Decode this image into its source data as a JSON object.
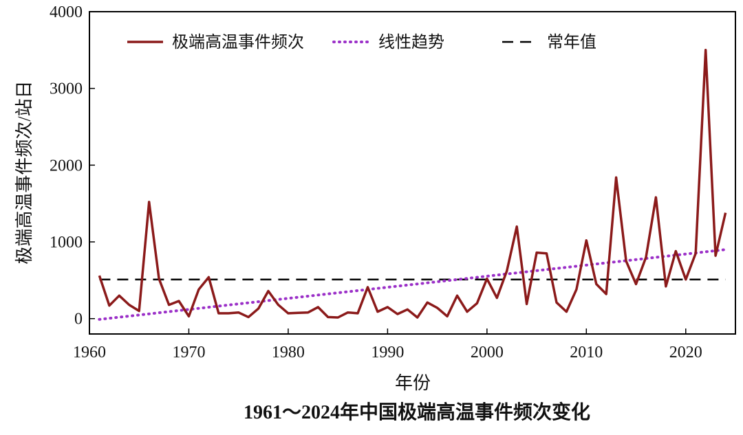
{
  "chart_data": {
    "type": "line",
    "title": "1961～2024年中国极端高温事件频次变化",
    "xlabel": "年份",
    "ylabel": "极端高温事件频次/站日",
    "xlim": [
      1960,
      2025
    ],
    "ylim": [
      -200,
      4000
    ],
    "xticks": [
      1960,
      1970,
      1980,
      1990,
      2000,
      2010,
      2020
    ],
    "yticks": [
      0,
      1000,
      2000,
      3000,
      4000
    ],
    "grid": false,
    "legend_position": "top",
    "colors": {
      "series": "#8b1a1a",
      "trend": "#9b30c8",
      "normal": "#000000"
    },
    "series": [
      {
        "name": "极端高温事件频次",
        "style": "solid",
        "x": [
          1961,
          1962,
          1963,
          1964,
          1965,
          1966,
          1967,
          1968,
          1969,
          1970,
          1971,
          1972,
          1973,
          1974,
          1975,
          1976,
          1977,
          1978,
          1979,
          1980,
          1981,
          1982,
          1983,
          1984,
          1985,
          1986,
          1987,
          1988,
          1989,
          1990,
          1991,
          1992,
          1993,
          1994,
          1995,
          1996,
          1997,
          1998,
          1999,
          2000,
          2001,
          2002,
          2003,
          2004,
          2005,
          2006,
          2007,
          2008,
          2009,
          2010,
          2011,
          2012,
          2013,
          2014,
          2015,
          2016,
          2017,
          2018,
          2019,
          2020,
          2021,
          2022,
          2023,
          2024
        ],
        "values": [
          560,
          170,
          300,
          180,
          100,
          1520,
          520,
          180,
          230,
          30,
          380,
          540,
          70,
          70,
          80,
          20,
          130,
          360,
          180,
          70,
          75,
          80,
          150,
          20,
          15,
          80,
          70,
          410,
          90,
          150,
          60,
          120,
          15,
          210,
          140,
          30,
          300,
          90,
          200,
          520,
          270,
          620,
          1200,
          190,
          860,
          850,
          210,
          90,
          380,
          1020,
          450,
          320,
          1840,
          750,
          450,
          800,
          1580,
          420,
          880,
          510,
          850,
          3500,
          820,
          1380
        ]
      },
      {
        "name": "线性趋势",
        "style": "dotted",
        "x": [
          1961,
          2024
        ],
        "values": [
          -10,
          900
        ]
      },
      {
        "name": "常年值",
        "style": "dashed",
        "x": [
          1961,
          2024
        ],
        "values": [
          510,
          510
        ]
      }
    ]
  }
}
